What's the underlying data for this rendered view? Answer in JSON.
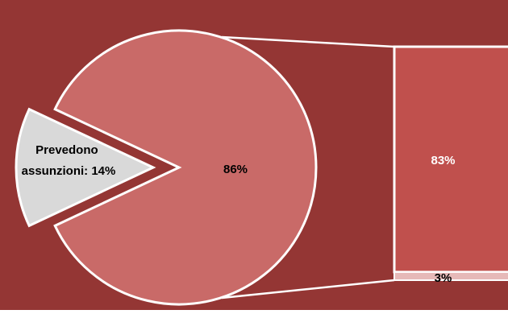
{
  "chart_data": {
    "type": "pie",
    "subtype": "bar-of-pie",
    "colors": {
      "background": "#943634",
      "pie_main": "#c96a68",
      "pie_exploded": "#d9d9d9",
      "stack_upper": "#c0504d",
      "stack_lower": "#e6b9b8",
      "outline": "#ffffff",
      "label_dark": "#000000",
      "label_light": "#ffffff"
    },
    "pie": {
      "slices": [
        {
          "label": "Prevedono assunzioni: 14%",
          "label_lines": [
            "Prevedono",
            "assunzioni: 14%"
          ],
          "value": 14,
          "exploded": true
        },
        {
          "label": "86%",
          "value": 86,
          "exploded": false
        }
      ]
    },
    "stack": {
      "segments": [
        {
          "label": "83%",
          "value": 83
        },
        {
          "label": "3%",
          "value": 3
        }
      ]
    }
  }
}
